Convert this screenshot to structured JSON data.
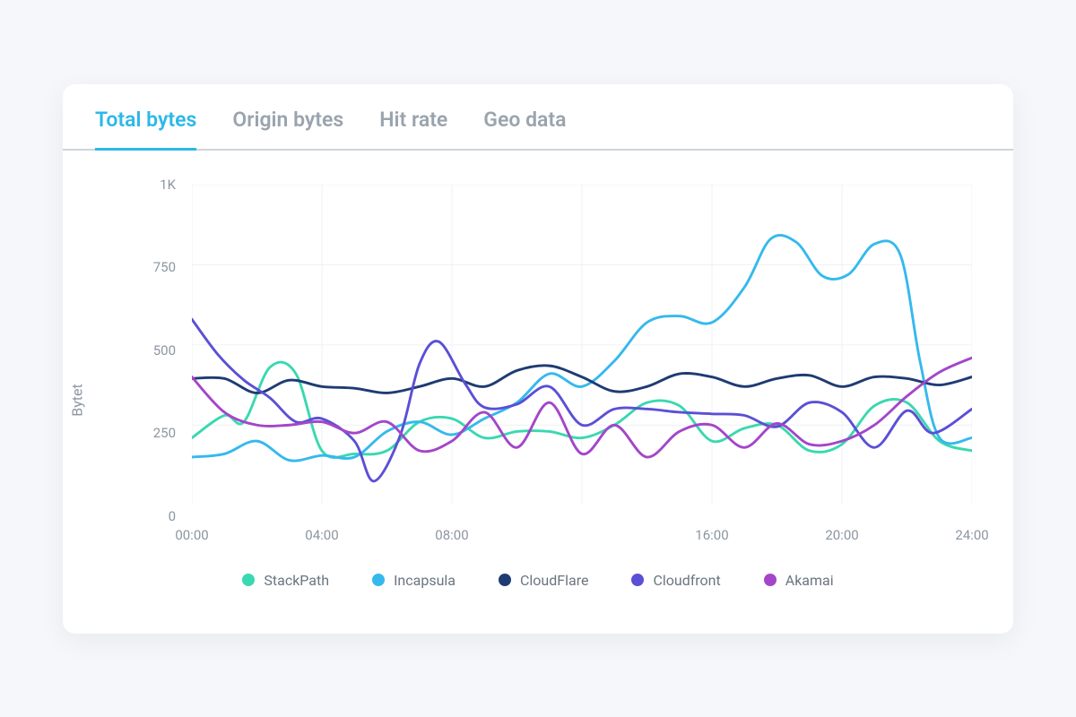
{
  "tabs": [
    {
      "label": "Total bytes",
      "active": true
    },
    {
      "label": "Origin bytes",
      "active": false
    },
    {
      "label": "Hit rate",
      "active": false
    },
    {
      "label": "Geo data",
      "active": false
    }
  ],
  "chart": {
    "type": "line",
    "y_label": "Bytet",
    "background_color": "#ffffff",
    "grid_color": "#eef0f3",
    "line_width": 3,
    "axis_text_color": "#8c96a1",
    "axis_fontsize": 15,
    "ylim": [
      0,
      1000
    ],
    "y_ticks": [
      {
        "pos": 0,
        "label": "0"
      },
      {
        "pos": 250,
        "label": "250"
      },
      {
        "pos": 500,
        "label": "500"
      },
      {
        "pos": 750,
        "label": "750"
      },
      {
        "pos": 1000,
        "label": "1K"
      }
    ],
    "xlim": [
      0,
      24
    ],
    "x_ticks": [
      {
        "pos": 0,
        "label": "00:00"
      },
      {
        "pos": 4,
        "label": "04:00"
      },
      {
        "pos": 8,
        "label": "08:00"
      },
      {
        "pos": 16,
        "label": "16:00"
      },
      {
        "pos": 20,
        "label": "20:00"
      },
      {
        "pos": 24,
        "label": "24:00"
      }
    ],
    "x_gridlines": [
      0,
      4,
      8,
      12,
      16,
      20,
      24
    ],
    "series": [
      {
        "name": "StackPath",
        "color": "#3ad8b0",
        "smooth": true,
        "data": [
          [
            0,
            210
          ],
          [
            1,
            280
          ],
          [
            1.6,
            260
          ],
          [
            2.4,
            430
          ],
          [
            3.2,
            410
          ],
          [
            4,
            170
          ],
          [
            5,
            160
          ],
          [
            6,
            170
          ],
          [
            7,
            260
          ],
          [
            8,
            270
          ],
          [
            9,
            210
          ],
          [
            10,
            230
          ],
          [
            11,
            230
          ],
          [
            12,
            210
          ],
          [
            13,
            250
          ],
          [
            14,
            320
          ],
          [
            15,
            310
          ],
          [
            16,
            200
          ],
          [
            17,
            240
          ],
          [
            18,
            250
          ],
          [
            19,
            170
          ],
          [
            20,
            190
          ],
          [
            21,
            310
          ],
          [
            22,
            320
          ],
          [
            23,
            200
          ],
          [
            24,
            170
          ]
        ]
      },
      {
        "name": "Incapsula",
        "color": "#35b9ed",
        "smooth": true,
        "data": [
          [
            0,
            150
          ],
          [
            1,
            160
          ],
          [
            2,
            200
          ],
          [
            3,
            140
          ],
          [
            4,
            155
          ],
          [
            5,
            150
          ],
          [
            6,
            230
          ],
          [
            7,
            260
          ],
          [
            8,
            220
          ],
          [
            9,
            270
          ],
          [
            10,
            320
          ],
          [
            11,
            410
          ],
          [
            12,
            370
          ],
          [
            13,
            450
          ],
          [
            14,
            570
          ],
          [
            15,
            590
          ],
          [
            16,
            570
          ],
          [
            17,
            680
          ],
          [
            17.8,
            830
          ],
          [
            18.6,
            820
          ],
          [
            19.4,
            715
          ],
          [
            20.2,
            720
          ],
          [
            21,
            815
          ],
          [
            21.8,
            780
          ],
          [
            22.4,
            450
          ],
          [
            23,
            210
          ],
          [
            24,
            210
          ]
        ]
      },
      {
        "name": "CloudFlare",
        "color": "#1f3b73",
        "smooth": true,
        "data": [
          [
            0,
            395
          ],
          [
            1,
            395
          ],
          [
            2,
            350
          ],
          [
            3,
            390
          ],
          [
            4,
            370
          ],
          [
            5,
            365
          ],
          [
            6,
            350
          ],
          [
            7,
            370
          ],
          [
            8,
            395
          ],
          [
            9,
            370
          ],
          [
            10,
            420
          ],
          [
            11,
            435
          ],
          [
            12,
            400
          ],
          [
            13,
            355
          ],
          [
            14,
            370
          ],
          [
            15,
            410
          ],
          [
            16,
            400
          ],
          [
            17,
            370
          ],
          [
            18,
            395
          ],
          [
            19,
            405
          ],
          [
            20,
            370
          ],
          [
            21,
            400
          ],
          [
            22,
            395
          ],
          [
            23,
            375
          ],
          [
            24,
            400
          ]
        ]
      },
      {
        "name": "Cloudfront",
        "color": "#5b4fd6",
        "smooth": true,
        "data": [
          [
            0,
            580
          ],
          [
            0.8,
            470
          ],
          [
            1.6,
            390
          ],
          [
            2.4,
            335
          ],
          [
            3.2,
            260
          ],
          [
            4,
            270
          ],
          [
            5,
            200
          ],
          [
            5.6,
            75
          ],
          [
            6.4,
            215
          ],
          [
            7,
            440
          ],
          [
            7.6,
            510
          ],
          [
            8.4,
            380
          ],
          [
            9,
            305
          ],
          [
            10,
            315
          ],
          [
            11,
            370
          ],
          [
            12,
            250
          ],
          [
            13,
            300
          ],
          [
            14,
            300
          ],
          [
            15,
            290
          ],
          [
            16,
            285
          ],
          [
            17,
            280
          ],
          [
            18,
            245
          ],
          [
            19,
            320
          ],
          [
            20,
            290
          ],
          [
            21,
            180
          ],
          [
            22,
            295
          ],
          [
            22.8,
            225
          ],
          [
            24,
            300
          ]
        ]
      },
      {
        "name": "Akamai",
        "color": "#a346c9",
        "smooth": true,
        "data": [
          [
            0,
            400
          ],
          [
            1,
            290
          ],
          [
            2,
            250
          ],
          [
            3,
            250
          ],
          [
            4,
            260
          ],
          [
            5,
            225
          ],
          [
            6,
            260
          ],
          [
            7,
            170
          ],
          [
            8,
            200
          ],
          [
            9,
            290
          ],
          [
            10,
            180
          ],
          [
            11,
            320
          ],
          [
            12,
            160
          ],
          [
            13,
            250
          ],
          [
            14,
            150
          ],
          [
            15,
            230
          ],
          [
            16,
            250
          ],
          [
            17,
            180
          ],
          [
            18,
            255
          ],
          [
            19,
            190
          ],
          [
            20,
            200
          ],
          [
            21,
            250
          ],
          [
            22,
            340
          ],
          [
            23,
            415
          ],
          [
            24,
            460
          ]
        ]
      }
    ]
  },
  "colors": {
    "card_bg": "#ffffff",
    "page_bg": "#f5f7fa",
    "tab_active": "#2db8e8",
    "tab_inactive": "#9aa4ae",
    "tab_border": "#cfd4da"
  }
}
